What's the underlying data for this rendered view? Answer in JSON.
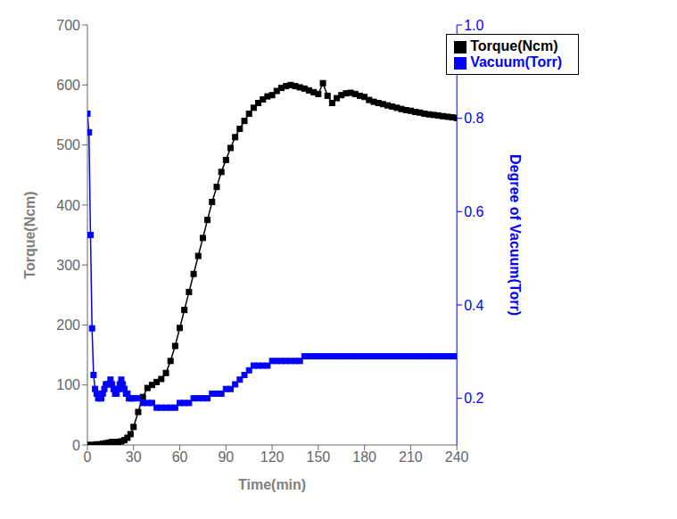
{
  "chart_data": {
    "type": "line",
    "xlabel": "Time(min)",
    "ylabel": "Torque(Ncm)",
    "y2label": "Degree of Vacuum(Torr)",
    "xlim": [
      0,
      240
    ],
    "xticks": [
      0,
      30,
      60,
      90,
      120,
      150,
      180,
      210,
      240
    ],
    "ylim": [
      0,
      700
    ],
    "yticks": [
      0,
      100,
      200,
      300,
      400,
      500,
      600,
      700
    ],
    "y2lim": [
      0.1,
      1.0
    ],
    "y2ticks": [
      0.2,
      0.4,
      0.6,
      0.8,
      {
        "value": 1.0,
        "label": "1.0"
      }
    ],
    "legend": "upper right",
    "grid": false,
    "series": [
      {
        "name": "Torque(Ncm)",
        "color": "#000000",
        "marker": "square",
        "line_style": "solid",
        "axis": "y",
        "x": [
          0,
          2,
          4,
          6,
          8,
          10,
          12,
          14,
          16,
          18,
          20,
          22,
          24,
          26,
          28,
          30,
          33,
          36,
          39,
          42,
          45,
          48,
          51,
          54,
          57,
          60,
          63,
          66,
          69,
          72,
          75,
          78,
          81,
          84,
          87,
          90,
          93,
          96,
          99,
          102,
          105,
          108,
          111,
          114,
          117,
          120,
          123,
          126,
          129,
          132,
          135,
          138,
          141,
          144,
          147,
          150,
          153,
          156,
          159,
          162,
          165,
          168,
          171,
          174,
          177,
          180,
          183,
          186,
          189,
          192,
          195,
          198,
          201,
          204,
          207,
          210,
          213,
          216,
          219,
          222,
          225,
          228,
          231,
          234,
          237,
          240
        ],
        "values": [
          0,
          0,
          0,
          1,
          1,
          2,
          3,
          4,
          5,
          5,
          5,
          6,
          8,
          12,
          18,
          30,
          55,
          80,
          95,
          100,
          105,
          110,
          120,
          140,
          165,
          195,
          225,
          255,
          285,
          315,
          345,
          375,
          405,
          430,
          455,
          475,
          495,
          513,
          527,
          540,
          552,
          562,
          570,
          576,
          581,
          583,
          590,
          595,
          598,
          600,
          598,
          596,
          594,
          591,
          588,
          585,
          603,
          582,
          570,
          578,
          583,
          586,
          587,
          585,
          582,
          580,
          575,
          572,
          570,
          568,
          566,
          564,
          562,
          560,
          558,
          557,
          555,
          554,
          552,
          551,
          550,
          549,
          548,
          547,
          546,
          545
        ]
      },
      {
        "name": "Vacuum(Torr)",
        "color": "#0000ff",
        "marker": "square",
        "line_style": "solid",
        "axis": "y2",
        "x": [
          0,
          1,
          2,
          3,
          4,
          5,
          6,
          7,
          8,
          9,
          10,
          11,
          12,
          13,
          14,
          15,
          16,
          17,
          18,
          19,
          20,
          21,
          22,
          23,
          24,
          25,
          26,
          27,
          28,
          29,
          30,
          33,
          36,
          39,
          42,
          45,
          48,
          51,
          54,
          57,
          60,
          63,
          66,
          69,
          72,
          75,
          78,
          81,
          84,
          87,
          90,
          93,
          96,
          99,
          102,
          105,
          108,
          111,
          114,
          117,
          120,
          123,
          126,
          129,
          132,
          135,
          138,
          141,
          144,
          147,
          150,
          153,
          156,
          159,
          162,
          165,
          168,
          171,
          174,
          177,
          180,
          183,
          186,
          189,
          192,
          195,
          198,
          201,
          204,
          207,
          210,
          213,
          216,
          219,
          222,
          225,
          228,
          231,
          234,
          237,
          240
        ],
        "values": [
          0.81,
          0.77,
          0.55,
          0.35,
          0.25,
          0.22,
          0.21,
          0.2,
          0.2,
          0.2,
          0.21,
          0.22,
          0.23,
          0.23,
          0.23,
          0.24,
          0.23,
          0.22,
          0.21,
          0.21,
          0.22,
          0.23,
          0.24,
          0.23,
          0.22,
          0.21,
          0.21,
          0.2,
          0.2,
          0.2,
          0.2,
          0.2,
          0.19,
          0.19,
          0.19,
          0.18,
          0.18,
          0.18,
          0.18,
          0.18,
          0.19,
          0.19,
          0.19,
          0.2,
          0.2,
          0.2,
          0.2,
          0.21,
          0.21,
          0.21,
          0.22,
          0.22,
          0.23,
          0.24,
          0.25,
          0.26,
          0.27,
          0.27,
          0.27,
          0.27,
          0.28,
          0.28,
          0.28,
          0.28,
          0.28,
          0.28,
          0.28,
          0.29,
          0.29,
          0.29,
          0.29,
          0.29,
          0.29,
          0.29,
          0.29,
          0.29,
          0.29,
          0.29,
          0.29,
          0.29,
          0.29,
          0.29,
          0.29,
          0.29,
          0.29,
          0.29,
          0.29,
          0.29,
          0.29,
          0.29,
          0.29,
          0.29,
          0.29,
          0.29,
          0.29,
          0.29,
          0.29,
          0.29,
          0.29,
          0.29,
          0.29
        ]
      }
    ]
  }
}
